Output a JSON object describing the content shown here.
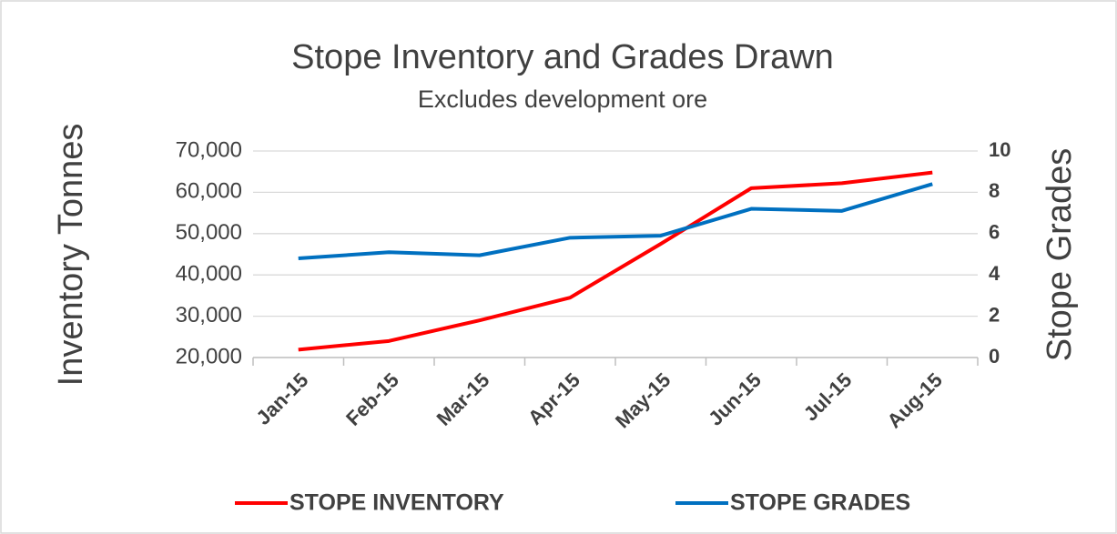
{
  "chart_data": {
    "type": "line",
    "title": "Stope Inventory and Grades Drawn",
    "subtitle": "Excludes development ore",
    "y_label": "Inventory Tonnes",
    "y2_label": "Stope Grades",
    "categories": [
      "Jan-15",
      "Feb-15",
      "Mar-15",
      "Apr-15",
      "May-15",
      "Jun-15",
      "Jul-15",
      "Aug-15"
    ],
    "series": [
      {
        "name": "STOPE INVENTORY",
        "color": "#ff0000",
        "values": [
          21900,
          24000,
          29000,
          34500,
          47500,
          61000,
          62200,
          64800
        ]
      },
      {
        "name": "STOPE GRADES",
        "color": "#0070c0",
        "axis": "y2",
        "values": [
          4.8,
          5.1,
          4.95,
          5.8,
          5.9,
          7.2,
          7.1,
          8.4
        ]
      }
    ],
    "ylim": [
      20000,
      70000
    ],
    "yticks": [
      {
        "value": 20000,
        "label": "20,000"
      },
      {
        "value": 30000,
        "label": "30,000"
      },
      {
        "value": 40000,
        "label": "40,000"
      },
      {
        "value": 50000,
        "label": "50,000"
      },
      {
        "value": 60000,
        "label": "60,000"
      },
      {
        "value": 70000,
        "label": "70,000"
      }
    ],
    "y2lim": [
      0,
      10
    ],
    "y2ticks": [
      0,
      2,
      4,
      6,
      8,
      10
    ],
    "grid": true,
    "legend": "bottom"
  }
}
